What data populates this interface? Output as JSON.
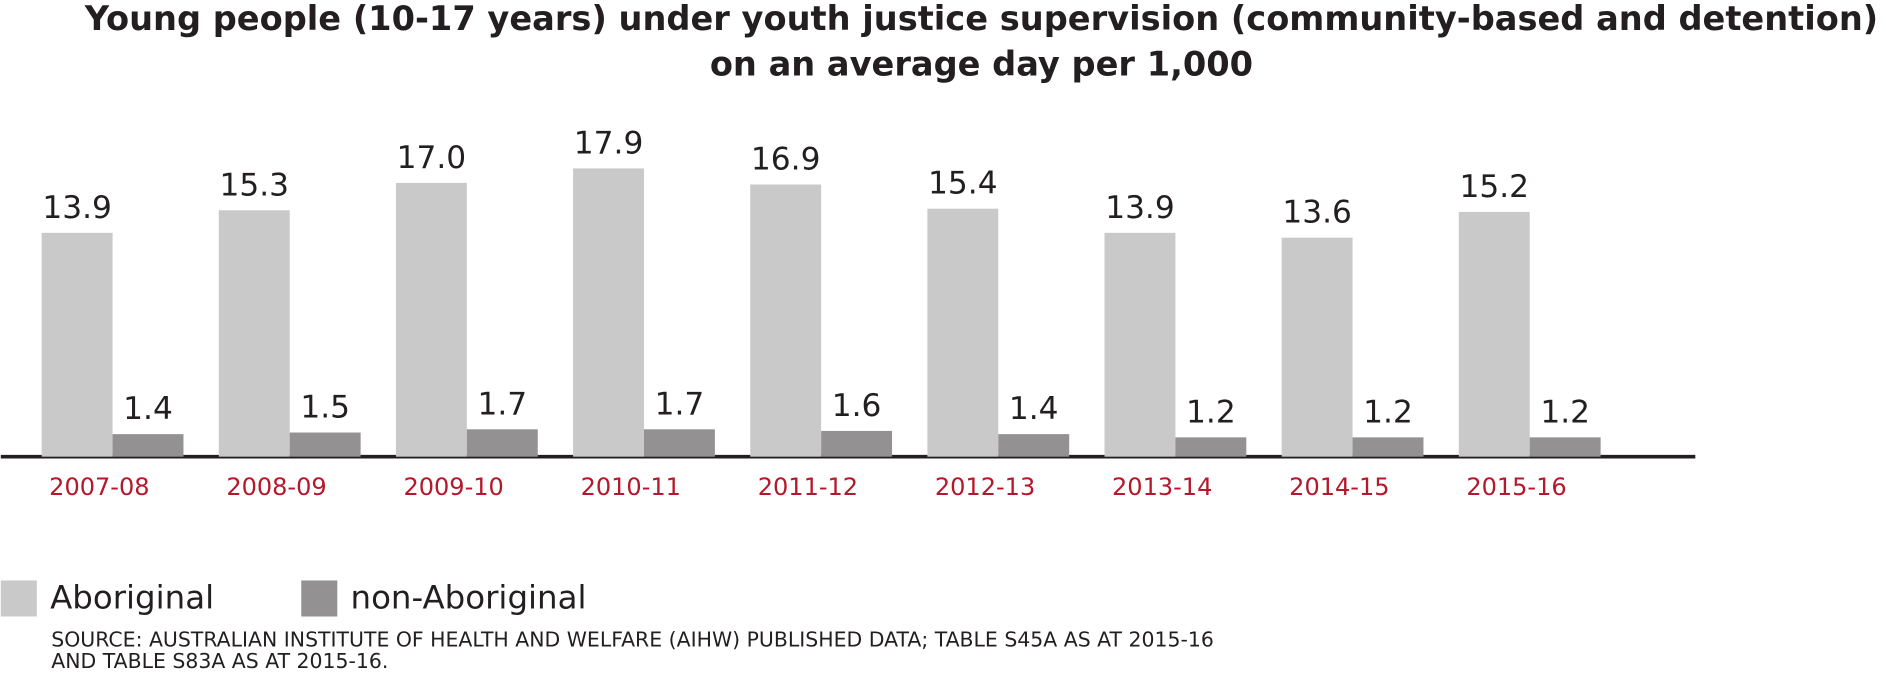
{
  "chart_data": {
    "type": "bar",
    "title": "Young people (10-17 years) under youth justice supervision (community-based and detention)",
    "subtitle": "on an average day  per 1,000",
    "categories": [
      "2007-08",
      "2008-09",
      "2009-10",
      "2010-11",
      "2011-12",
      "2012-13",
      "2013-14",
      "2014-15",
      "2015-16"
    ],
    "series": [
      {
        "name": "Aboriginal",
        "color": "#c8c9c8",
        "values": [
          13.9,
          15.3,
          17.0,
          17.9,
          16.9,
          15.4,
          13.9,
          13.6,
          15.2
        ],
        "value_labels": [
          "13.9",
          "15.3",
          "17.0",
          "17.9",
          "16.9",
          "15.4",
          "13.9",
          "13.6",
          "15.2"
        ]
      },
      {
        "name": "non-Aboriginal",
        "color": "#939192",
        "values": [
          1.4,
          1.5,
          1.7,
          1.7,
          1.6,
          1.4,
          1.2,
          1.2,
          1.2
        ]
      }
    ],
    "ylim": [
      0,
      20
    ],
    "category_color": "#b5172b",
    "source": [
      "SOURCE: AUSTRALIAN INSTITUTE OF HEALTH AND WELFARE (AIHW) PUBLISHED DATA; TABLE S45A AS AT 2015-16",
      "AND TABLE S83A AS AT 2015-16."
    ]
  }
}
